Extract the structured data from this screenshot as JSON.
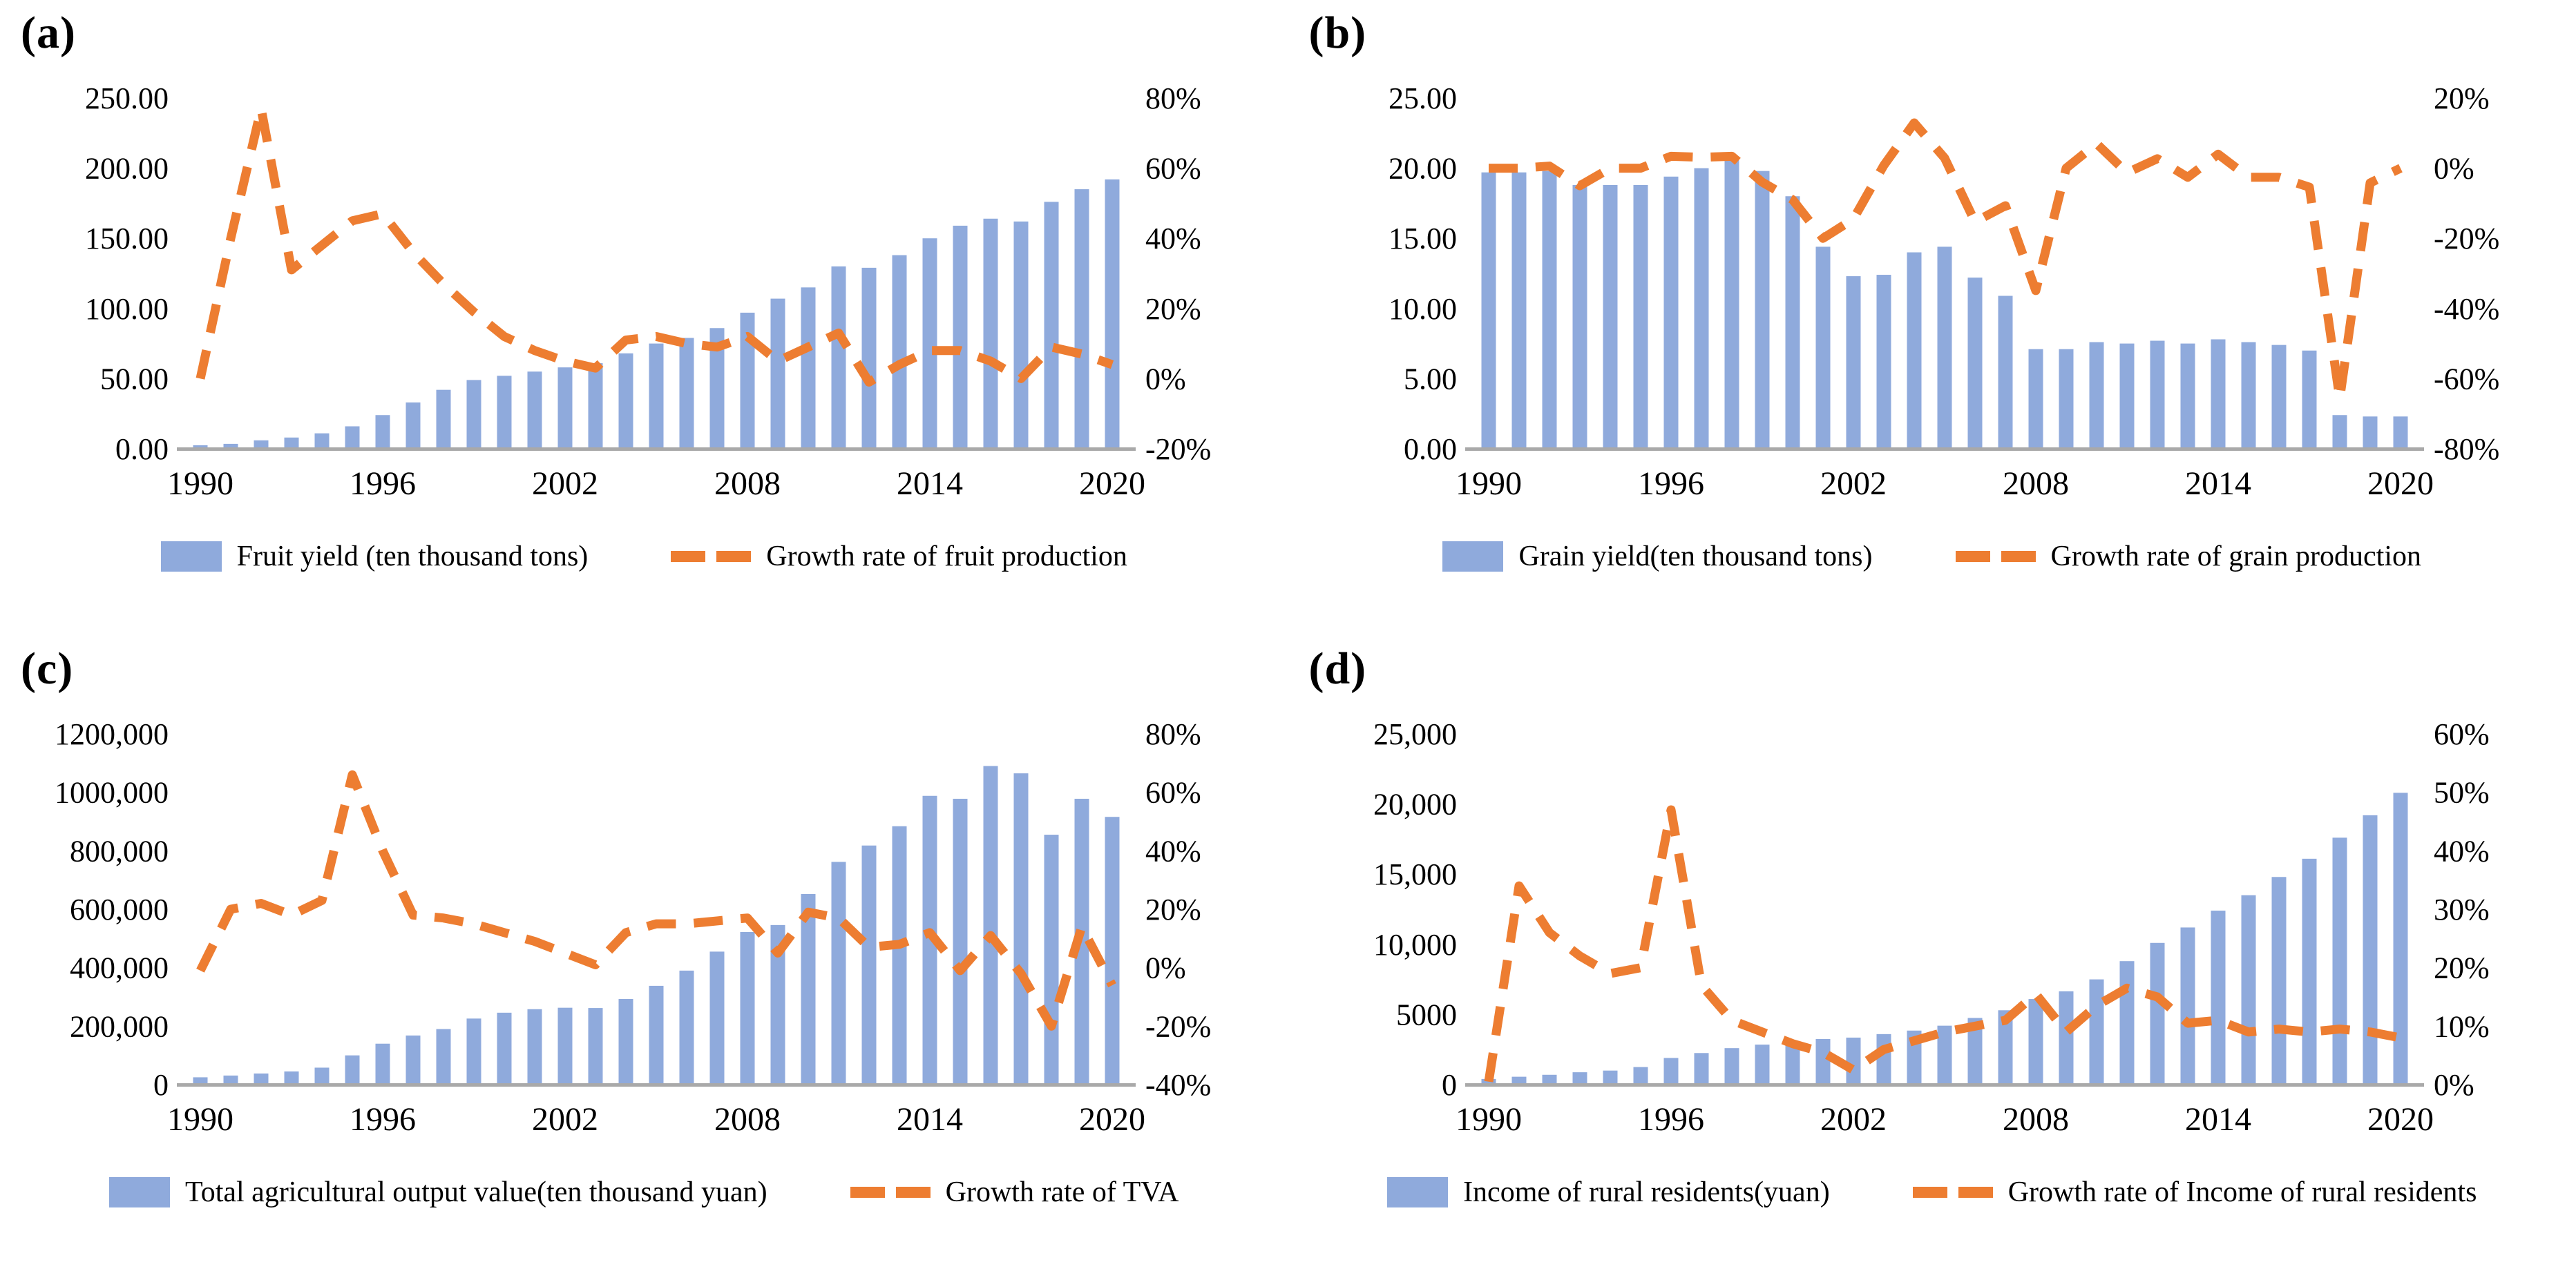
{
  "colors": {
    "bar": "#8faadc",
    "line": "#ed7d31",
    "axis": "#a9a9a9",
    "text": "#000000"
  },
  "chart_data": [
    {
      "id": "a",
      "panel_label": "(a)",
      "type": "bar",
      "subtype": "bar+line combo, dual axis, legend bottom, no grid",
      "x": [
        1990,
        1991,
        1992,
        1993,
        1994,
        1995,
        1996,
        1997,
        1998,
        1999,
        2000,
        2001,
        2002,
        2003,
        2004,
        2005,
        2006,
        2007,
        2008,
        2009,
        2010,
        2011,
        2012,
        2013,
        2014,
        2015,
        2016,
        2017,
        2018,
        2019,
        2020
      ],
      "x_tick_labels": [
        "1990",
        "1996",
        "2002",
        "2008",
        "2014",
        "2020"
      ],
      "bar_series": {
        "name": "Fruit yield (ten thousand tons)",
        "axis": "left",
        "values": [
          2.5,
          3.5,
          6,
          8,
          11,
          16,
          24,
          33,
          42,
          49,
          52,
          55,
          58,
          61,
          68,
          75,
          79,
          86,
          97,
          107,
          115,
          130,
          129,
          138,
          150,
          159,
          164,
          162,
          176,
          185,
          192
        ]
      },
      "line_series": {
        "name": "Growth rate of fruit production",
        "axis": "right",
        "values_percent": [
          0,
          40,
          77,
          31,
          38,
          45,
          47,
          36,
          27,
          19,
          12,
          8,
          5,
          3,
          11,
          12,
          10,
          9,
          12,
          5,
          9,
          13,
          -1,
          4,
          8,
          8,
          5,
          0,
          9,
          7,
          4
        ]
      },
      "left_axis": {
        "min": 0,
        "max": 250,
        "tick_labels": [
          "0.00",
          "50.00",
          "100.00",
          "150.00",
          "200.00",
          "250.00"
        ]
      },
      "right_axis": {
        "min": -20,
        "max": 80,
        "tick_labels": [
          "-20%",
          "0%",
          "20%",
          "40%",
          "60%",
          "80%"
        ]
      }
    },
    {
      "id": "b",
      "panel_label": "(b)",
      "type": "bar",
      "subtype": "bar+line combo, dual axis, legend bottom, no grid",
      "x": [
        1990,
        1991,
        1992,
        1993,
        1994,
        1995,
        1996,
        1997,
        1998,
        1999,
        2000,
        2001,
        2002,
        2003,
        2004,
        2005,
        2006,
        2007,
        2008,
        2009,
        2010,
        2011,
        2012,
        2013,
        2014,
        2015,
        2016,
        2017,
        2018,
        2019,
        2020
      ],
      "x_tick_labels": [
        "1990",
        "1996",
        "2002",
        "2008",
        "2014",
        "2020"
      ],
      "bar_series": {
        "name": "Grain yield(ten thousand tons)",
        "axis": "left",
        "values": [
          19.7,
          19.7,
          19.8,
          18.8,
          18.8,
          18.8,
          19.4,
          20.0,
          20.6,
          19.8,
          18.0,
          14.4,
          12.3,
          12.4,
          14.0,
          14.4,
          12.2,
          10.9,
          7.1,
          7.1,
          7.6,
          7.5,
          7.7,
          7.5,
          7.8,
          7.6,
          7.4,
          7.0,
          2.4,
          2.3,
          2.3
        ]
      },
      "line_series": {
        "name": "Growth rate of grain production",
        "axis": "right",
        "values_percent": [
          0,
          0,
          0.6,
          -5,
          0,
          0,
          3.4,
          3.1,
          3.4,
          -4,
          -9,
          -20,
          -14.5,
          0.8,
          12.9,
          2.9,
          -15.3,
          -10.7,
          -34.9,
          0,
          7,
          -1.3,
          2.7,
          -2.6,
          4,
          -2.6,
          -2.6,
          -5.4,
          -65.7,
          -4.2,
          0
        ]
      },
      "left_axis": {
        "min": 0,
        "max": 25,
        "tick_labels": [
          "0.00",
          "5.00",
          "10.00",
          "15.00",
          "20.00",
          "25.00"
        ]
      },
      "right_axis": {
        "min": -80,
        "max": 20,
        "tick_labels": [
          "-80%",
          "-60%",
          "-40%",
          "-20%",
          "0%",
          "20%"
        ]
      }
    },
    {
      "id": "c",
      "panel_label": "(c)",
      "type": "bar",
      "subtype": "bar+line combo, dual axis, legend bottom, no grid",
      "x": [
        1990,
        1991,
        1992,
        1993,
        1994,
        1995,
        1996,
        1997,
        1998,
        1999,
        2000,
        2001,
        2002,
        2003,
        2004,
        2005,
        2006,
        2007,
        2008,
        2009,
        2010,
        2011,
        2012,
        2013,
        2014,
        2015,
        2016,
        2017,
        2018,
        2019,
        2020
      ],
      "x_tick_labels": [
        "1990",
        "1996",
        "2002",
        "2008",
        "2014",
        "2020"
      ],
      "bar_series": {
        "name": "Total agricultural output value(ten thousand yuan)",
        "axis": "left",
        "values": [
          25000,
          31000,
          38000,
          45000,
          58000,
          100000,
          140000,
          168000,
          190000,
          226000,
          246000,
          258000,
          263000,
          262000,
          293000,
          338000,
          390000,
          455000,
          522000,
          546000,
          652000,
          762000,
          818000,
          884000,
          988000,
          978000,
          1090000,
          1065000,
          855000,
          978000,
          916000
        ]
      },
      "line_series": {
        "name": "Growth rate of TVA",
        "axis": "right",
        "values_percent": [
          -1,
          20,
          22,
          18,
          23,
          66,
          40,
          18,
          17,
          15,
          12,
          9,
          5,
          1,
          12,
          15,
          15,
          16,
          17,
          5,
          19,
          17,
          7,
          8,
          12,
          -1,
          11,
          -2,
          -20,
          14,
          -6
        ]
      },
      "left_axis": {
        "min": 0,
        "max": 1200000,
        "tick_labels": [
          "0",
          "200,000",
          "400,000",
          "600,000",
          "800,000",
          "1000,000",
          "1200,000"
        ]
      },
      "right_axis": {
        "min": -40,
        "max": 80,
        "tick_labels": [
          "-40%",
          "-20%",
          "0%",
          "20%",
          "40%",
          "60%",
          "80%"
        ]
      }
    },
    {
      "id": "d",
      "panel_label": "(d)",
      "type": "bar",
      "subtype": "bar+line combo, dual axis, legend bottom, no grid",
      "x": [
        1990,
        1991,
        1992,
        1993,
        1994,
        1995,
        1996,
        1997,
        1998,
        1999,
        2000,
        2001,
        2002,
        2003,
        2004,
        2005,
        2006,
        2007,
        2008,
        2009,
        2010,
        2011,
        2012,
        2013,
        2014,
        2015,
        2016,
        2017,
        2018,
        2019,
        2020
      ],
      "x_tick_labels": [
        "1990",
        "1996",
        "2002",
        "2008",
        "2014",
        "2020"
      ],
      "bar_series": {
        "name": "Income of rural residents(yuan)",
        "axis": "left",
        "values": [
          400,
          560,
          700,
          880,
          1000,
          1250,
          1900,
          2250,
          2600,
          2850,
          3050,
          3250,
          3350,
          3600,
          3850,
          4200,
          4750,
          5300,
          6100,
          6650,
          7500,
          8800,
          10100,
          11200,
          12400,
          13500,
          14800,
          16100,
          17600,
          19200,
          20800
        ]
      },
      "line_series": {
        "name": "Growth rate of Income of rural residents",
        "axis": "right",
        "values_percent": [
          0.5,
          34,
          26,
          22,
          19,
          20,
          47,
          17,
          11,
          9,
          7,
          5.5,
          2.5,
          6,
          7.5,
          9,
          10,
          11,
          15.5,
          9,
          13.5,
          16.5,
          15,
          10.5,
          11,
          9,
          9.5,
          9,
          9.5,
          9,
          8
        ]
      },
      "left_axis": {
        "min": 0,
        "max": 25000,
        "tick_labels": [
          "0",
          "5000",
          "10,000",
          "15,000",
          "20,000",
          "25,000"
        ]
      },
      "right_axis": {
        "min": 0,
        "max": 60,
        "tick_labels": [
          "0%",
          "10%",
          "20%",
          "30%",
          "40%",
          "50%",
          "60%"
        ]
      }
    }
  ]
}
